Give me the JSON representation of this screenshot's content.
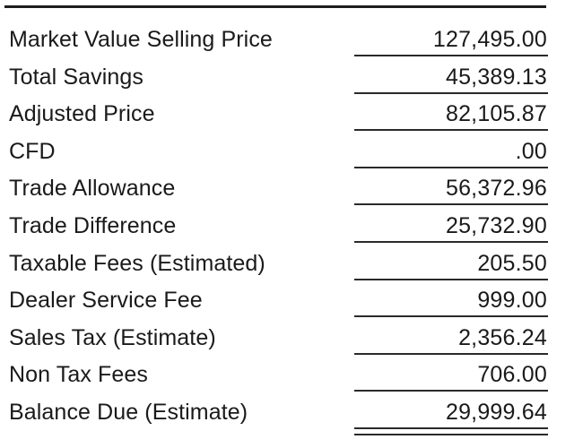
{
  "summary": {
    "rows": [
      {
        "label": "Market Value Selling Price",
        "value": "127,495.00"
      },
      {
        "label": "Total Savings",
        "value": "45,389.13"
      },
      {
        "label": "Adjusted Price",
        "value": "82,105.87"
      },
      {
        "label": "CFD",
        "value": ".00"
      },
      {
        "label": "Trade Allowance",
        "value": "56,372.96"
      },
      {
        "label": "Trade Difference",
        "value": "25,732.90"
      },
      {
        "label": "Taxable Fees (Estimated)",
        "value": "205.50"
      },
      {
        "label": "Dealer Service Fee",
        "value": "999.00"
      },
      {
        "label": "Sales Tax (Estimate)",
        "value": "2,356.24"
      },
      {
        "label": "Non Tax Fees",
        "value": "706.00"
      },
      {
        "label": "Balance Due (Estimate)",
        "value": "29,999.64"
      }
    ]
  }
}
